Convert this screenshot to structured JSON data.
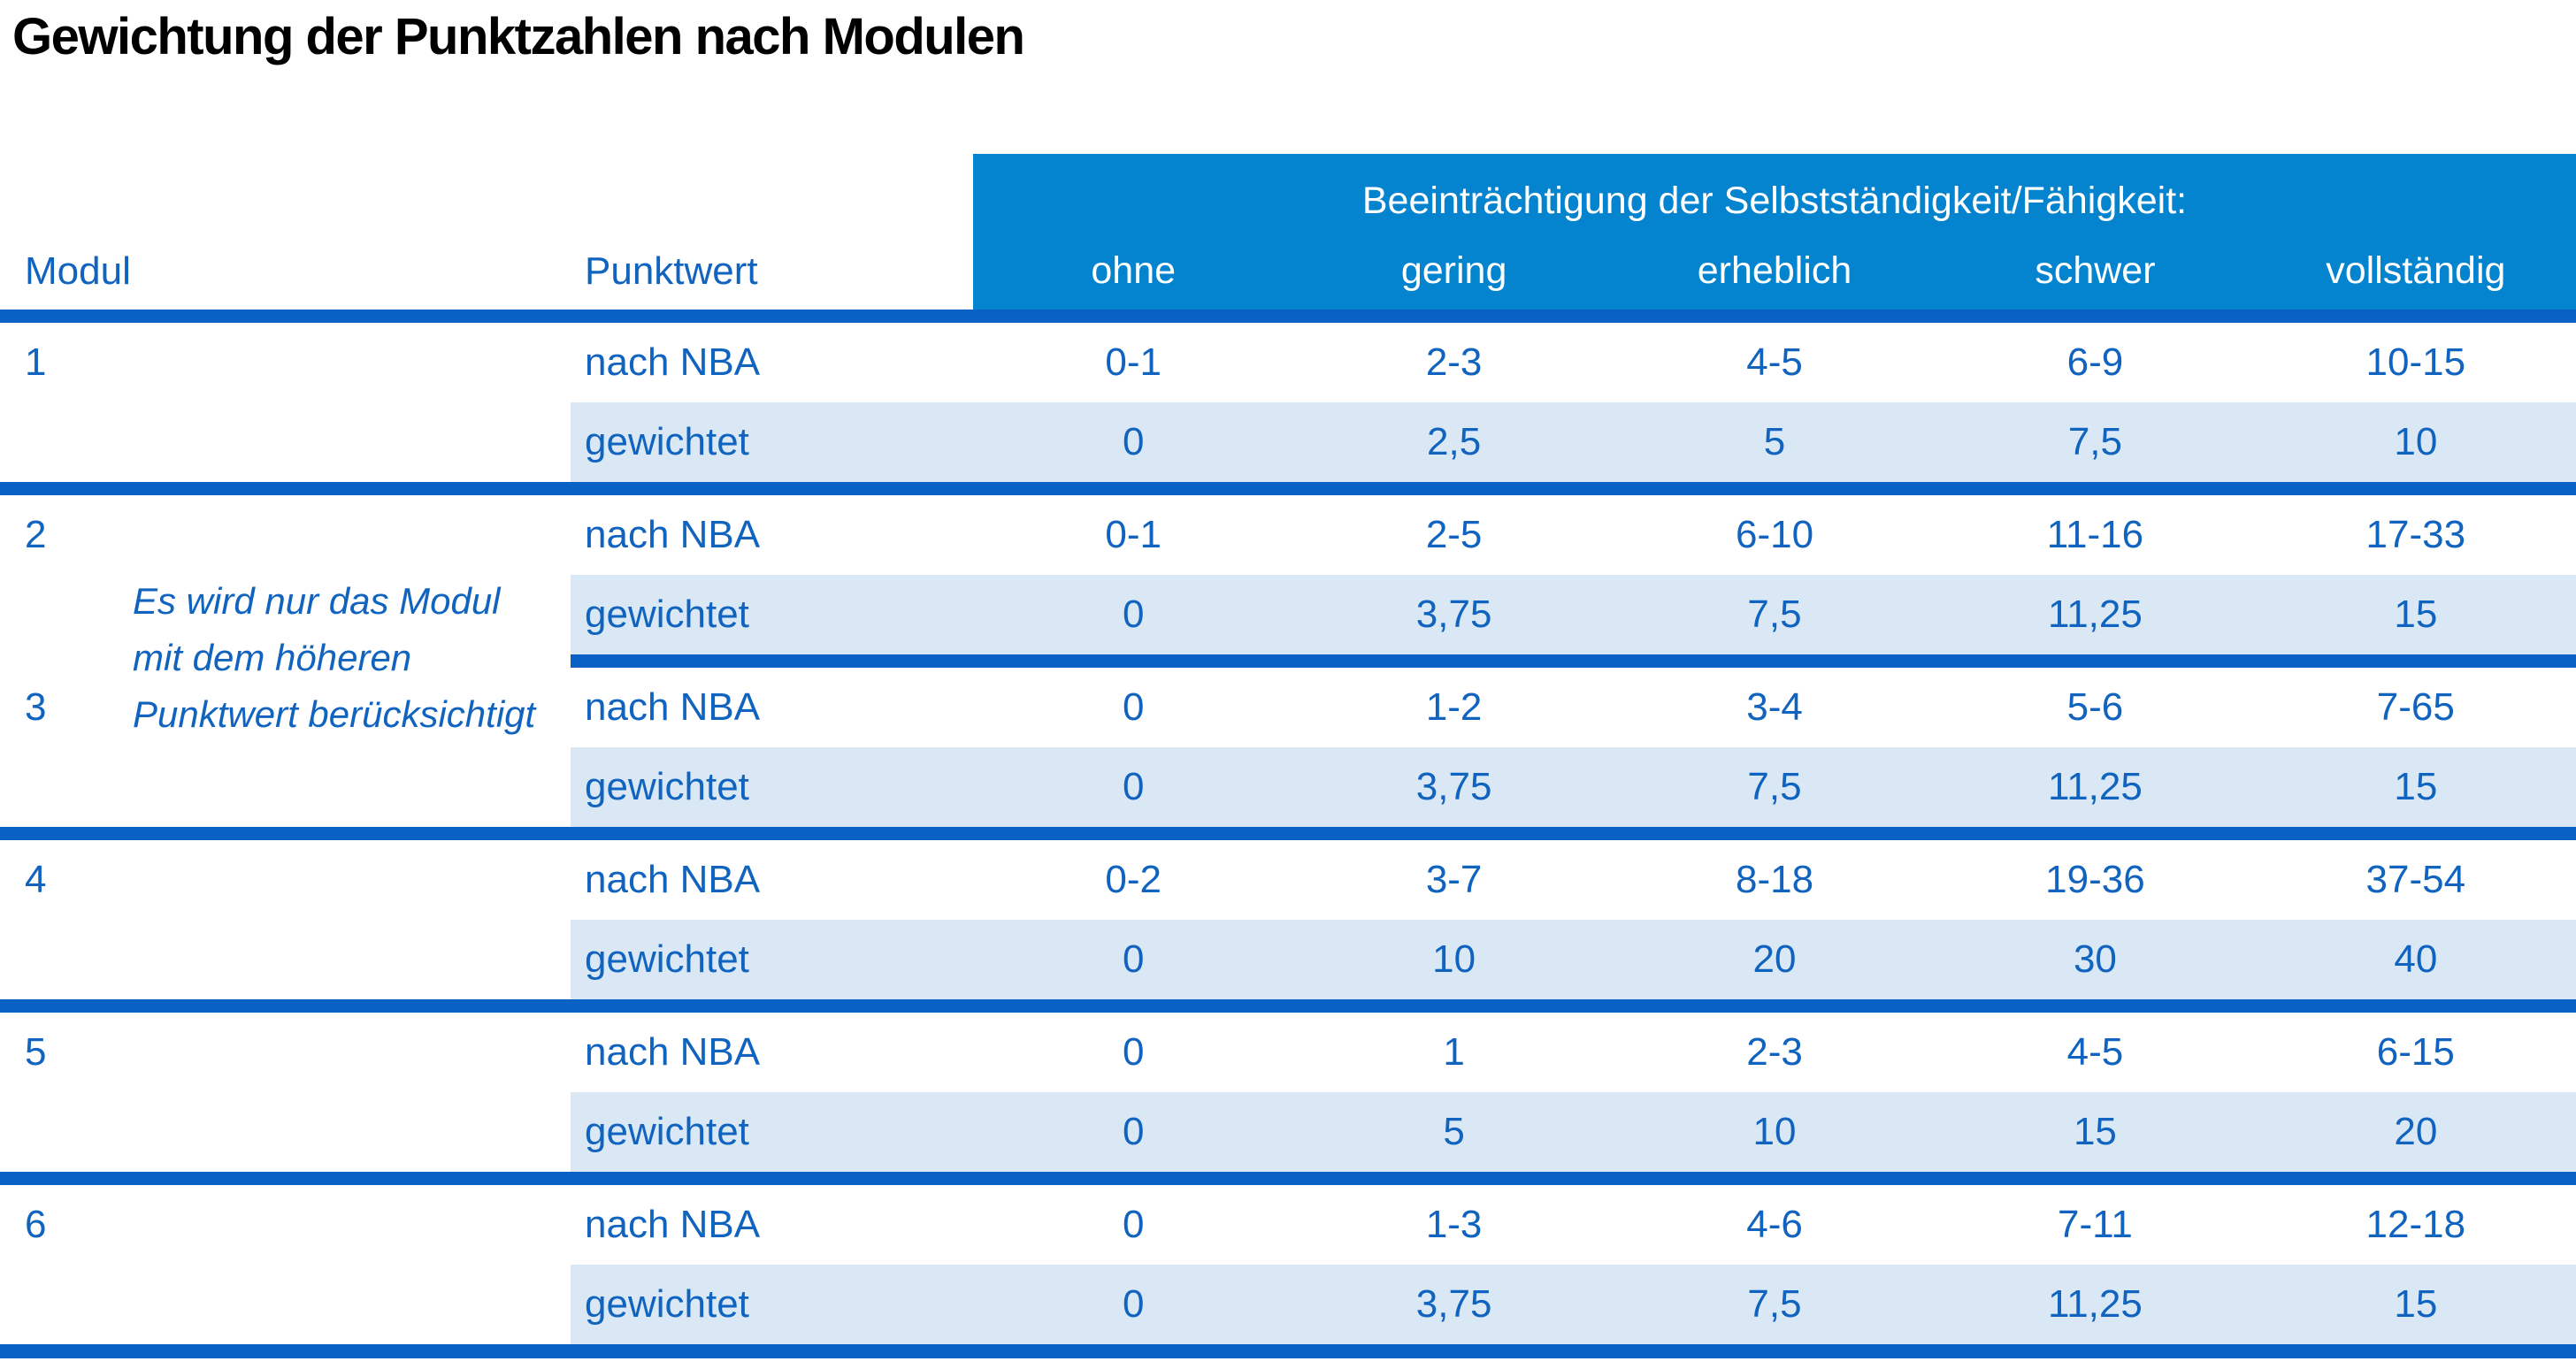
{
  "title": "Gewichtung der Punktzahlen nach Modulen",
  "table": {
    "col_headers": {
      "modul": "Modul",
      "punktwert": "Punktwert"
    },
    "group_header": "Beeinträchtigung der Selbstständigkeit/Fähigkeit:",
    "severity_levels": [
      "ohne",
      "gering",
      "erheblich",
      "schwer",
      "vollständig"
    ],
    "row_labels": {
      "nba": "nach NBA",
      "weighted": "gewichtet"
    },
    "note": "Es wird nur das Modul mit dem höheren Punktwert berücksichtigt",
    "note_lines": [
      "Es wird nur das Modul",
      "mit dem höheren",
      "Punktwert berücksichtigt"
    ],
    "modules": [
      {
        "id": "1",
        "nba": [
          "0-1",
          "2-3",
          "4-5",
          "6-9",
          "10-15"
        ],
        "weighted": [
          "0",
          "2,5",
          "5",
          "7,5",
          "10"
        ]
      },
      {
        "id": "2",
        "nba": [
          "0-1",
          "2-5",
          "6-10",
          "11-16",
          "17-33"
        ],
        "weighted": [
          "0",
          "3,75",
          "7,5",
          "11,25",
          "15"
        ]
      },
      {
        "id": "3",
        "nba": [
          "0",
          "1-2",
          "3-4",
          "5-6",
          "7-65"
        ],
        "weighted": [
          "0",
          "3,75",
          "7,5",
          "11,25",
          "15"
        ]
      },
      {
        "id": "4",
        "nba": [
          "0-2",
          "3-7",
          "8-18",
          "19-36",
          "37-54"
        ],
        "weighted": [
          "0",
          "10",
          "20",
          "30",
          "40"
        ]
      },
      {
        "id": "5",
        "nba": [
          "0",
          "1",
          "2-3",
          "4-5",
          "6-15"
        ],
        "weighted": [
          "0",
          "5",
          "10",
          "15",
          "20"
        ]
      },
      {
        "id": "6",
        "nba": [
          "0",
          "1-3",
          "4-6",
          "7-11",
          "12-18"
        ],
        "weighted": [
          "0",
          "3,75",
          "7,5",
          "11,25",
          "15"
        ]
      }
    ]
  },
  "colors": {
    "header_bg": "#0483CF",
    "line": "#0961C6",
    "band": "#D9E8F4",
    "text_blue": "#1063BE",
    "heading_text": "#FFFFFF",
    "title_color": "#000000"
  }
}
